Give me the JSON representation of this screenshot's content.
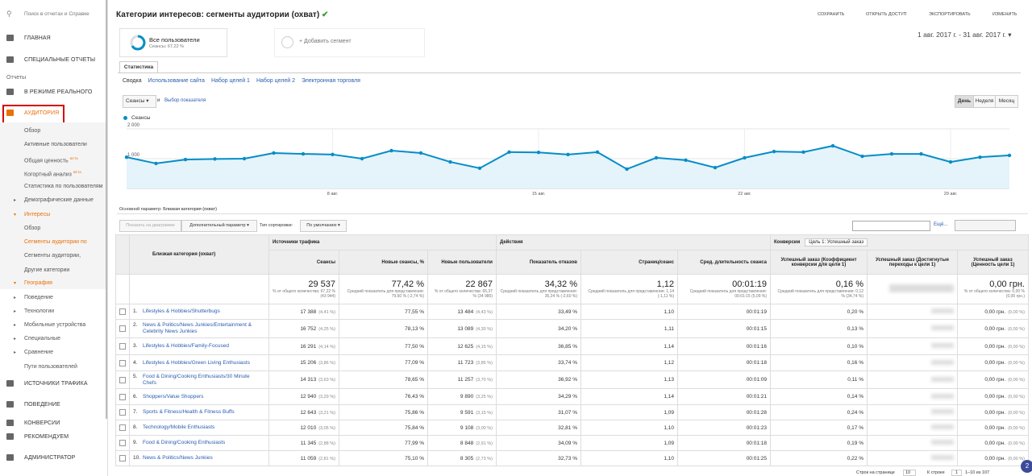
{
  "sidebar": {
    "search": "Поиск в отчетах и Справке",
    "items": [
      "ГЛАВНАЯ",
      "СПЕЦИАЛЬНЫЕ ОТЧЕТЫ",
      "Отчеты",
      "В РЕЖИМЕ РЕАЛЬНОГО",
      "АУДИТОРИЯ",
      "Обзор",
      "Активные пользователи",
      {
        "label": "Общая ценность",
        "badge": "BETA"
      },
      {
        "label": "Когортный анализ",
        "badge": "BETA"
      },
      "Статистика по пользователям",
      "Демографические данные",
      "Интересы",
      "Обзор",
      "Сегменты аудитории по",
      "Сегменты аудитории,",
      "Другие категории",
      "География",
      "Поведение",
      "Технологии",
      "Мобильные устройства",
      "Специальные",
      "Сравнение",
      "Пути пользователей",
      "ИСТОЧНИКИ ТРАФИКА",
      "ПОВЕДЕНИЕ",
      "КОНВЕРСИИ",
      "РЕКОМЕНДУЕМ",
      "АДМИНИСТРАТОР"
    ]
  },
  "header": {
    "title": "Категории интересов: сегменты аудитории (охват)",
    "actions": [
      "СОХРАНИТЬ",
      "ОТКРЫТЬ ДОСТУП",
      "ЭКСПОРТИРОВАТЬ",
      "ИЗМЕНИТЬ"
    ],
    "segment": {
      "name": "Все пользователи",
      "detail": "Сеансы: 67,22 %"
    },
    "add_segment": "+ Добавить сегмент",
    "date_range": "1 авг. 2017 г. - 31 авг. 2017 г."
  },
  "tabs": {
    "main": "Статистика",
    "sub": [
      "Сводка",
      "Использование сайта",
      "Набор целей 1",
      "Набор целей 2",
      "Электронная торговля"
    ]
  },
  "metric_bar": {
    "metric": "Сеансы",
    "and": "и",
    "choose": "Выбор показателя",
    "granularity": [
      "День",
      "Неделя",
      "Месяц"
    ]
  },
  "chart": {
    "type": "line",
    "x": [
      null,
      null,
      null,
      null,
      null,
      null,
      null,
      "8 авг.",
      null,
      null,
      null,
      null,
      null,
      null,
      "15 авг.",
      null,
      null,
      null,
      null,
      null,
      null,
      "22 авг.",
      null,
      null,
      null,
      null,
      null,
      null,
      "29 авг.",
      null,
      null
    ],
    "series": [
      {
        "name": "Сеансы",
        "color": "#058dc7",
        "values": [
          1050,
          840,
          970,
          990,
          1000,
          1190,
          1160,
          1140,
          1000,
          1270,
          1190,
          890,
          680,
          1220,
          1210,
          1140,
          1220,
          650,
          1030,
          950,
          700,
          1030,
          1240,
          1220,
          1430,
          1080,
          1160,
          1160,
          890,
          1050,
          1110
        ]
      }
    ],
    "ylim": [
      0,
      2000
    ],
    "yticks": [
      {
        "value": 1000,
        "label": "1 000"
      },
      {
        "value": 2000,
        "label": "2 000"
      }
    ],
    "grid": true
  },
  "controls": {
    "primary_label": "Основной параметр:",
    "primary_value": "Близкая категория (охват)",
    "plot": "Показать на диаграмме",
    "secondary": "Дополнительный параметр",
    "sort_label": "Тип сортировки:",
    "sort_value": "По умолчанию",
    "more": "Ещё..."
  },
  "table": {
    "groups": [
      "Источники трафика",
      "Действия",
      "Конверсии"
    ],
    "goal_select": "Цель 1: Успешный заказ",
    "columns": [
      "Близкая категория (охват)",
      "Сеансы",
      "Новые сеансы, %",
      "Новые пользователи",
      "Показатель отказов",
      "Страниц/сеанс",
      "Сред. длительность сеанса",
      "Успешный заказ (Коэффициент конверсии для цели 1)",
      "Успешный заказ (Достигнутые переходы к цели 1)",
      "Успешный заказ (Ценность цели 1)"
    ],
    "totals": {
      "sessions": {
        "value": "29 537",
        "note": "% от общего количества: 67,22 % (43 944)"
      },
      "new_sessions": {
        "value": "77,42 %",
        "note": "Средний показатель для представления: 79,60 % (-2,74 %)"
      },
      "new_users": {
        "value": "22 867",
        "note": "% от общего количества: 65,37 % (34 980)"
      },
      "bounce": {
        "value": "34,32 %",
        "note": "Средний показатель для представления: 35,24 % (-2,60 %)"
      },
      "pages": {
        "value": "1,12",
        "note": "Средний показатель для представления: 1,14 (-1,11 %)"
      },
      "duration": {
        "value": "00:01:19",
        "note": "Средний показатель для представления: 00:01:15 (5,09 %)"
      },
      "conversion": {
        "value": "0,16 %",
        "note": "Средний показатель для представления: 0,12 % (34,74 %)"
      },
      "value": {
        "value": "0,00 грн.",
        "note": "% от общего количества: 0,00 % (0,00 грн.)"
      }
    },
    "rows": [
      {
        "index": "1.",
        "name": "Lifestyles & Hobbies/Shutterbugs",
        "sessions": "17 388",
        "sessions_share": "(4,41 %)",
        "new_sessions": "77,55 %",
        "new_users": "13 484",
        "new_users_share": "(4,43 %)",
        "bounce": "33,49 %",
        "pages": "1,10",
        "duration": "00:01:19",
        "conversion": "0,20 %",
        "value": "0,00 грн.",
        "value_share": "(0,00 %)"
      },
      {
        "index": "2.",
        "name": "News & Politics/News Junkies/Entertainment & Celebrity News Junkies",
        "sessions": "16 752",
        "sessions_share": "(4,25 %)",
        "new_sessions": "78,13 %",
        "new_users": "13 089",
        "new_users_share": "(4,30 %)",
        "bounce": "34,20 %",
        "pages": "1,11",
        "duration": "00:01:15",
        "conversion": "0,13 %",
        "value": "0,00 грн.",
        "value_share": "(0,00 %)"
      },
      {
        "index": "3.",
        "name": "Lifestyles & Hobbies/Family-Focused",
        "sessions": "16 291",
        "sessions_share": "(4,14 %)",
        "new_sessions": "77,50 %",
        "new_users": "12 625",
        "new_users_share": "(4,15 %)",
        "bounce": "36,85 %",
        "pages": "1,14",
        "duration": "00:01:16",
        "conversion": "0,10 %",
        "value": "0,00 грн.",
        "value_share": "(0,00 %)"
      },
      {
        "index": "4.",
        "name": "Lifestyles & Hobbies/Green Living Enthusiasts",
        "sessions": "15 206",
        "sessions_share": "(3,86 %)",
        "new_sessions": "77,09 %",
        "new_users": "11 723",
        "new_users_share": "(3,85 %)",
        "bounce": "33,74 %",
        "pages": "1,12",
        "duration": "00:01:18",
        "conversion": "0,16 %",
        "value": "0,00 грн.",
        "value_share": "(0,00 %)"
      },
      {
        "index": "5.",
        "name": "Food & Dining/Cooking Enthusiasts/30 Minute Chefs",
        "sessions": "14 313",
        "sessions_share": "(3,63 %)",
        "new_sessions": "78,65 %",
        "new_users": "11 257",
        "new_users_share": "(3,70 %)",
        "bounce": "36,92 %",
        "pages": "1,13",
        "duration": "00:01:09",
        "conversion": "0,11 %",
        "value": "0,00 грн.",
        "value_share": "(0,00 %)"
      },
      {
        "index": "6.",
        "name": "Shoppers/Value Shoppers",
        "sessions": "12 940",
        "sessions_share": "(3,29 %)",
        "new_sessions": "76,43 %",
        "new_users": "9 890",
        "new_users_share": "(3,25 %)",
        "bounce": "34,29 %",
        "pages": "1,14",
        "duration": "00:01:21",
        "conversion": "0,14 %",
        "value": "0,00 грн.",
        "value_share": "(0,00 %)"
      },
      {
        "index": "7.",
        "name": "Sports & Fitness/Health & Fitness Buffs",
        "sessions": "12 643",
        "sessions_share": "(3,21 %)",
        "new_sessions": "75,86 %",
        "new_users": "9 591",
        "new_users_share": "(3,15 %)",
        "bounce": "31,07 %",
        "pages": "1,09",
        "duration": "00:01:28",
        "conversion": "0,24 %",
        "value": "0,00 грн.",
        "value_share": "(0,00 %)"
      },
      {
        "index": "8.",
        "name": "Technology/Mobile Enthusiasts",
        "sessions": "12 010",
        "sessions_share": "(3,05 %)",
        "new_sessions": "75,84 %",
        "new_users": "9 108",
        "new_users_share": "(3,00 %)",
        "bounce": "32,81 %",
        "pages": "1,10",
        "duration": "00:01:23",
        "conversion": "0,17 %",
        "value": "0,00 грн.",
        "value_share": "(0,00 %)"
      },
      {
        "index": "9.",
        "name": "Food & Dining/Cooking Enthusiasts",
        "sessions": "11 345",
        "sessions_share": "(2,88 %)",
        "new_sessions": "77,99 %",
        "new_users": "8 848",
        "new_users_share": "(2,91 %)",
        "bounce": "34,09 %",
        "pages": "1,09",
        "duration": "00:01:18",
        "conversion": "0,19 %",
        "value": "0,00 грн.",
        "value_share": "(0,00 %)"
      },
      {
        "index": "10.",
        "name": "News & Politics/News Junkies",
        "sessions": "11 059",
        "sessions_share": "(2,81 %)",
        "new_sessions": "75,10 %",
        "new_users": "8 305",
        "new_users_share": "(2,73 %)",
        "bounce": "32,73 %",
        "pages": "1,10",
        "duration": "00:01:25",
        "conversion": "0,22 %",
        "value": "0,00 грн.",
        "value_share": "(0,00 %)"
      }
    ]
  },
  "pagination": {
    "rows_label": "Строк на странице",
    "rows_value": "10",
    "goto_label": "К строке",
    "goto_value": "1",
    "range": "1–10 из 107"
  }
}
